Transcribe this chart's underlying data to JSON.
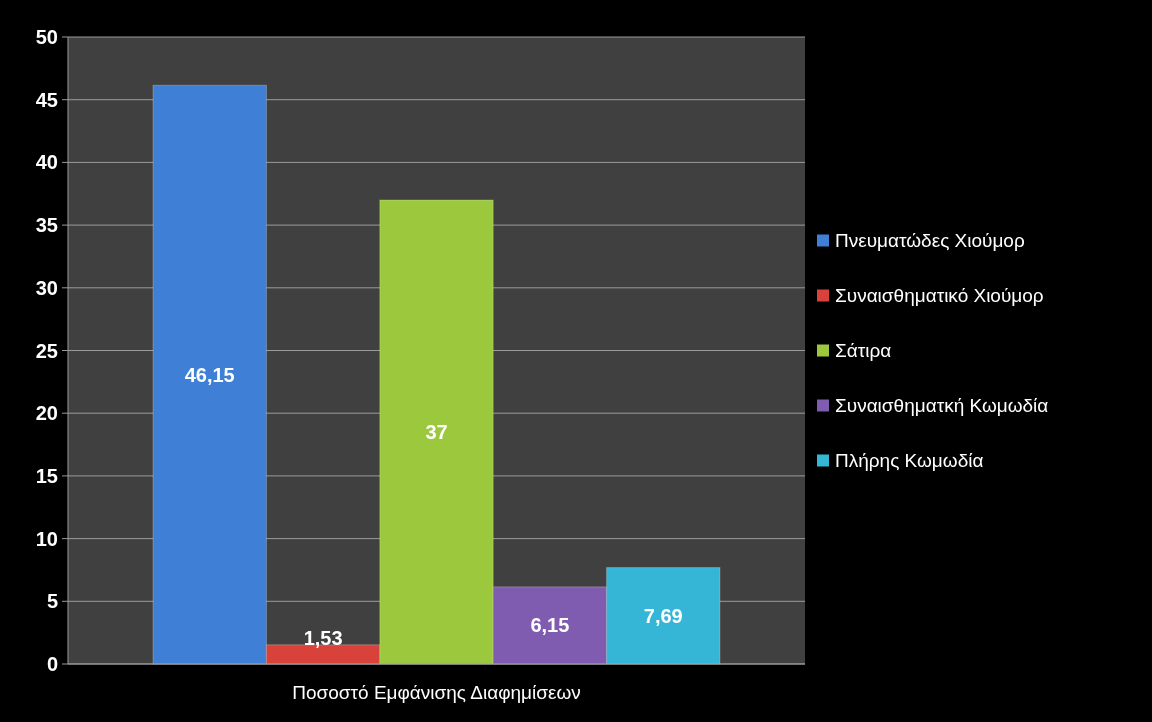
{
  "chart_data": {
    "type": "bar",
    "categories": [
      "Ποσοστό Εμφάνισης Διαφημίσεων"
    ],
    "series": [
      {
        "name": "Πνευματώδες Χιούμορ",
        "color": "#3f7fd6",
        "values": [
          46.15
        ],
        "value_labels": [
          "46,15"
        ]
      },
      {
        "name": "Συναισθηματικό Χιούμορ",
        "color": "#d8423a",
        "values": [
          1.53
        ],
        "value_labels": [
          "1,53"
        ]
      },
      {
        "name": "Σάτιρα",
        "color": "#9cc83e",
        "values": [
          37
        ],
        "value_labels": [
          "37"
        ]
      },
      {
        "name": "Συναισθηματκή Κωμωδία",
        "color": "#7f5cb0",
        "values": [
          6.15
        ],
        "value_labels": [
          "6,15"
        ]
      },
      {
        "name": "Πλήρης Κωμωδία",
        "color": "#35b6d6",
        "values": [
          7.69
        ],
        "value_labels": [
          "7,69"
        ]
      }
    ],
    "ylim": [
      0,
      50
    ],
    "yticks": [
      0,
      5,
      10,
      15,
      20,
      25,
      30,
      35,
      40,
      45,
      50
    ],
    "grid": "y",
    "legend": "right"
  }
}
